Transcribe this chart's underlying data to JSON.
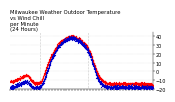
{
  "title": "Milwaukee Weather Outdoor Temperature\nvs Wind Chill\nper Minute\n(24 Hours)",
  "bg_color": "#ffffff",
  "dot_color_temp": "#ff0000",
  "dot_color_wc": "#0000cc",
  "grid_color": "#999999",
  "ylim": [
    -20,
    45
  ],
  "yticks": [
    40,
    30,
    20,
    10,
    0,
    -10,
    -20
  ],
  "num_points": 1440,
  "temp_profile": [
    [
      -11,
      -11,
      -11,
      -10,
      -9,
      -8,
      -7,
      -6,
      -5,
      -4,
      -5,
      -8,
      -10,
      -12,
      -13,
      -13,
      -13,
      -12,
      -8,
      -3,
      3,
      9,
      14,
      18,
      22,
      26,
      29,
      32,
      34,
      36,
      37,
      38,
      39,
      40,
      40,
      40,
      39,
      38,
      37,
      36,
      34,
      32,
      30,
      27,
      23,
      18,
      12,
      6,
      0,
      -5,
      -8,
      -10,
      -12,
      -13,
      -14,
      -14,
      -14,
      -14,
      -14,
      -14,
      -14,
      -14,
      -14,
      -14,
      -14,
      -14,
      -14,
      -14,
      -14,
      -14,
      -14,
      -14,
      -14,
      -14,
      -14,
      -14,
      -15,
      -15,
      -15,
      -15
    ]
  ],
  "wc_profile": [
    [
      -18,
      -18,
      -18,
      -17,
      -16,
      -15,
      -14,
      -13,
      -12,
      -11,
      -12,
      -15,
      -17,
      -18,
      -18,
      -18,
      -18,
      -17,
      -14,
      -9,
      -3,
      3,
      9,
      14,
      18,
      22,
      26,
      29,
      31,
      33,
      35,
      36,
      37,
      38,
      38,
      38,
      37,
      36,
      35,
      34,
      32,
      30,
      27,
      24,
      19,
      14,
      8,
      2,
      -5,
      -10,
      -13,
      -15,
      -16,
      -17,
      -18,
      -18,
      -18,
      -18,
      -18,
      -18,
      -18,
      -18,
      -18,
      -18,
      -18,
      -18,
      -18,
      -18,
      -18,
      -18,
      -18,
      -18,
      -18,
      -18,
      -18,
      -18,
      -18,
      -18,
      -18,
      -18
    ]
  ],
  "vline_positions": [
    0.21,
    0.545
  ],
  "tick_fontsize": 3.5,
  "title_fontsize": 3.8,
  "dot_size": 0.8,
  "noise_temp": 0.8,
  "noise_wc": 1.0
}
